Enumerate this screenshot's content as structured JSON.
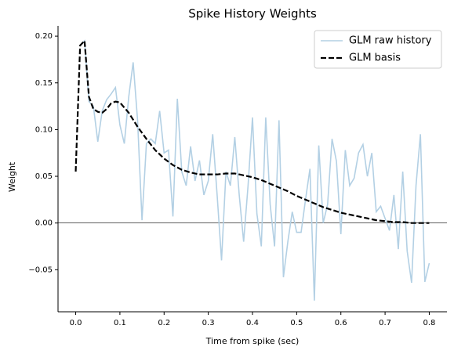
{
  "chart_data": {
    "type": "line",
    "title": "Spike History Weights",
    "xlabel": "Time from spike (sec)",
    "ylabel": "Weight",
    "xlim": [
      -0.04,
      0.84
    ],
    "ylim": [
      -0.095,
      0.211
    ],
    "xticks": [
      {
        "value": 0,
        "label": "0.0"
      },
      {
        "value": 0.1,
        "label": "0.1"
      },
      {
        "value": 0.2,
        "label": "0.2"
      },
      {
        "value": 0.3,
        "label": "0.3"
      },
      {
        "value": 0.4,
        "label": "0.4"
      },
      {
        "value": 0.5,
        "label": "0.5"
      },
      {
        "value": 0.6,
        "label": "0.6"
      },
      {
        "value": 0.7,
        "label": "0.7"
      },
      {
        "value": 0.8,
        "label": "0.8"
      }
    ],
    "yticks": [
      {
        "value": -0.05,
        "label": "−0.05"
      },
      {
        "value": 0,
        "label": "0.00"
      },
      {
        "value": 0.05,
        "label": "0.05"
      },
      {
        "value": 0.1,
        "label": "0.10"
      },
      {
        "value": 0.15,
        "label": "0.15"
      },
      {
        "value": 0.2,
        "label": "0.20"
      }
    ],
    "reference_line": 0,
    "legend": "upper right",
    "series": [
      {
        "name": "GLM raw history",
        "color": "#b3d0e4",
        "dashed": false,
        "x": [
          0.01,
          0.02,
          0.03,
          0.04,
          0.05,
          0.06,
          0.07,
          0.08,
          0.09,
          0.1,
          0.11,
          0.12,
          0.13,
          0.14,
          0.15,
          0.16,
          0.17,
          0.18,
          0.19,
          0.2,
          0.21,
          0.22,
          0.23,
          0.24,
          0.25,
          0.26,
          0.27,
          0.28,
          0.29,
          0.3,
          0.31,
          0.32,
          0.33,
          0.34,
          0.35,
          0.36,
          0.37,
          0.38,
          0.39,
          0.4,
          0.41,
          0.42,
          0.43,
          0.44,
          0.45,
          0.46,
          0.47,
          0.48,
          0.49,
          0.5,
          0.51,
          0.52,
          0.53,
          0.54,
          0.55,
          0.56,
          0.57,
          0.58,
          0.59,
          0.6,
          0.61,
          0.62,
          0.63,
          0.64,
          0.65,
          0.66,
          0.67,
          0.68,
          0.69,
          0.7,
          0.71,
          0.72,
          0.73,
          0.74,
          0.75,
          0.76,
          0.77,
          0.78,
          0.79,
          0.8
        ],
        "values": [
          0.19,
          0.195,
          0.13,
          0.125,
          0.087,
          0.12,
          0.132,
          0.138,
          0.145,
          0.105,
          0.085,
          0.135,
          0.172,
          0.11,
          0.003,
          0.085,
          0.09,
          0.085,
          0.12,
          0.075,
          0.078,
          0.007,
          0.133,
          0.055,
          0.04,
          0.082,
          0.045,
          0.067,
          0.03,
          0.045,
          0.095,
          0.03,
          -0.04,
          0.055,
          0.04,
          0.092,
          0.03,
          -0.02,
          0.04,
          0.113,
          0.01,
          -0.025,
          0.113,
          0.02,
          -0.025,
          0.11,
          -0.058,
          -0.02,
          0.012,
          -0.01,
          -0.01,
          0.025,
          0.058,
          -0.083,
          0.083,
          0.0,
          0.02,
          0.09,
          0.066,
          -0.012,
          0.078,
          0.04,
          0.048,
          0.075,
          0.084,
          0.05,
          0.075,
          0.012,
          0.018,
          0.005,
          -0.008,
          0.03,
          -0.028,
          0.055,
          -0.03,
          -0.064,
          0.04,
          0.095,
          -0.063,
          -0.043
        ]
      },
      {
        "name": "GLM basis",
        "color": "#000000",
        "dashed": true,
        "x": [
          0,
          0.01,
          0.02,
          0.03,
          0.04,
          0.05,
          0.06,
          0.07,
          0.08,
          0.09,
          0.1,
          0.12,
          0.14,
          0.16,
          0.18,
          0.2,
          0.22,
          0.24,
          0.26,
          0.28,
          0.3,
          0.32,
          0.34,
          0.36,
          0.38,
          0.4,
          0.42,
          0.44,
          0.46,
          0.48,
          0.5,
          0.52,
          0.54,
          0.56,
          0.58,
          0.6,
          0.62,
          0.64,
          0.66,
          0.68,
          0.7,
          0.72,
          0.74,
          0.76,
          0.78,
          0.8
        ],
        "values": [
          0.055,
          0.19,
          0.195,
          0.135,
          0.122,
          0.119,
          0.118,
          0.122,
          0.128,
          0.13,
          0.129,
          0.118,
          0.103,
          0.09,
          0.078,
          0.069,
          0.062,
          0.057,
          0.054,
          0.052,
          0.052,
          0.052,
          0.053,
          0.053,
          0.051,
          0.049,
          0.046,
          0.042,
          0.038,
          0.034,
          0.029,
          0.025,
          0.021,
          0.017,
          0.014,
          0.011,
          0.009,
          0.007,
          0.005,
          0.003,
          0.002,
          0.001,
          0.001,
          0,
          0,
          0
        ]
      }
    ]
  }
}
